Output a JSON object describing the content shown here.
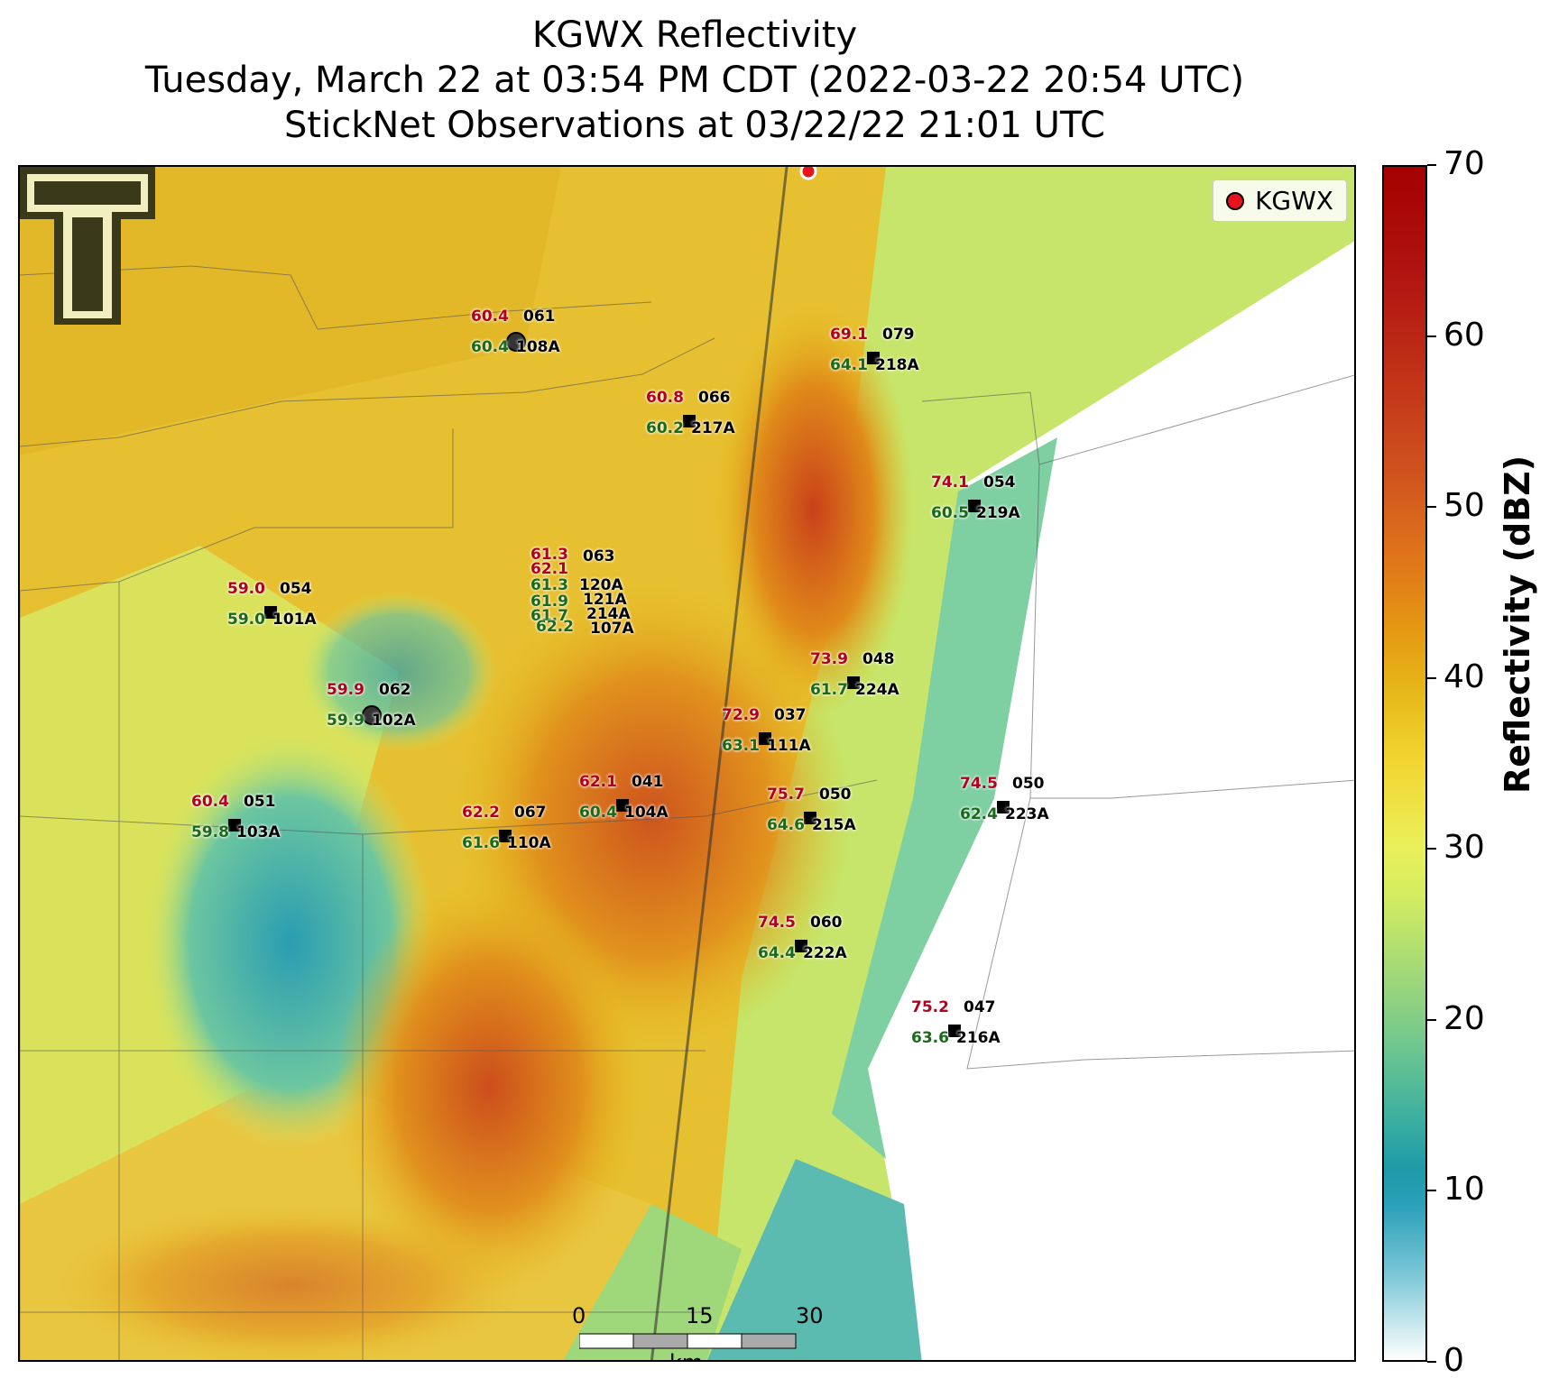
{
  "title": {
    "line1": "KGWX Reflectivity",
    "line2": "Tuesday, March 22 at 03:54 PM CDT (2022-03-22 20:54 UTC)",
    "line3": "StickNet Observations at 03/22/22 21:01 UTC"
  },
  "legend": {
    "label": "KGWX",
    "marker_color": "#e8141c"
  },
  "colorbar": {
    "label": "Reflectivity (dBZ)",
    "ticks": [
      "0",
      "10",
      "20",
      "30",
      "40",
      "50",
      "60",
      "70"
    ],
    "range": [
      0,
      70
    ]
  },
  "scale_bar": {
    "ticks": [
      "0",
      "15",
      "30"
    ],
    "unit": "km"
  },
  "stations": [
    {
      "id": "108A",
      "temp": "60.4",
      "dew": "60.4",
      "pres": "061",
      "marker": "circle"
    },
    {
      "id": "218A",
      "temp": "69.1",
      "dew": "64.1",
      "pres": "079",
      "marker": "square"
    },
    {
      "id": "217A",
      "temp": "60.8",
      "dew": "60.2",
      "pres": "066",
      "marker": "square"
    },
    {
      "id": "219A",
      "temp": "74.1",
      "dew": "60.5",
      "pres": "054",
      "marker": "square"
    },
    {
      "id": "101A",
      "temp": "59.0",
      "dew": "59.0",
      "pres": "054",
      "marker": "square"
    },
    {
      "id": "224A",
      "temp": "73.9",
      "dew": "61.7",
      "pres": "048",
      "marker": "square"
    },
    {
      "id": "102A",
      "temp": "59.9",
      "dew": "59.9",
      "pres": "062",
      "marker": "circle"
    },
    {
      "id": "111A",
      "temp": "72.9",
      "dew": "63.1",
      "pres": "037",
      "marker": "square"
    },
    {
      "id": "104A",
      "temp": "62.1",
      "dew": "60.4",
      "pres": "041",
      "marker": "square"
    },
    {
      "id": "103A",
      "temp": "60.4",
      "dew": "59.8",
      "pres": "051",
      "marker": "square"
    },
    {
      "id": "110A",
      "temp": "62.2",
      "dew": "61.6",
      "pres": "067",
      "marker": "square"
    },
    {
      "id": "215A",
      "temp": "75.7",
      "dew": "64.6",
      "pres": "050",
      "marker": "square"
    },
    {
      "id": "223A",
      "temp": "74.5",
      "dew": "62.4",
      "pres": "050",
      "marker": "square"
    },
    {
      "id": "222A",
      "temp": "74.5",
      "dew": "64.4",
      "pres": "060",
      "marker": "square"
    },
    {
      "id": "216A",
      "temp": "75.2",
      "dew": "63.6",
      "pres": "047",
      "marker": "square"
    }
  ],
  "cluster": {
    "temps": [
      "61.3",
      "62.1"
    ],
    "dews": [
      "61.3",
      "61.9",
      "61.7",
      "62.2"
    ],
    "pres": [
      "063"
    ],
    "ids": [
      "120A",
      "121A",
      "214A",
      "107A"
    ]
  }
}
